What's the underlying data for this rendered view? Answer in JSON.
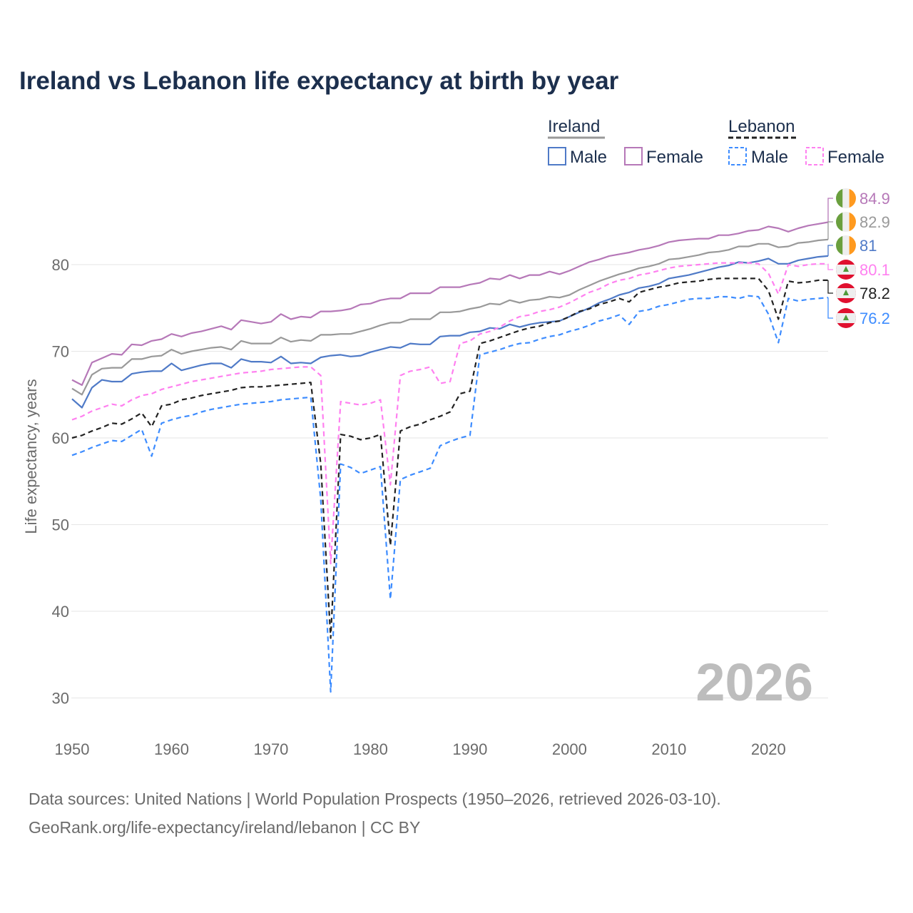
{
  "title": "Ireland vs Lebanon life expectancy at birth by year",
  "footer": {
    "line1": "Data sources: United Nations | World Population Prospects (1950–2026, retrieved 2026-03-10).",
    "line2": "GeoRank.org/life-expectancy/ireland/lebanon | CC BY"
  },
  "year_watermark": "2026",
  "legend": {
    "ireland": "Ireland",
    "lebanon": "Lebanon",
    "male": "Male",
    "female": "Female"
  },
  "chart_data": {
    "type": "line",
    "title": "Ireland vs Lebanon life expectancy at birth by year",
    "xlabel": "",
    "ylabel": "Life expectancy, years",
    "xlim": [
      1950,
      2026
    ],
    "ylim": [
      28,
      88
    ],
    "x_ticks": [
      "1950",
      "1960",
      "1970",
      "1980",
      "1990",
      "2000",
      "2010",
      "2020"
    ],
    "y_ticks": [
      "30",
      "40",
      "50",
      "60",
      "70",
      "80"
    ],
    "grid": true,
    "legend_position": "top-right",
    "x_start": 1950,
    "series": [
      {
        "name": "Ireland Female",
        "country": "Ireland",
        "flag": "ireland",
        "color": "#b678b8",
        "dash": false,
        "end_label": "84.9",
        "values": [
          66.7,
          66.1,
          68.7,
          69.2,
          69.7,
          69.6,
          70.8,
          70.7,
          71.2,
          71.4,
          72.0,
          71.7,
          72.1,
          72.3,
          72.6,
          72.9,
          72.5,
          73.6,
          73.4,
          73.2,
          73.4,
          74.3,
          73.7,
          74.0,
          73.9,
          74.6,
          74.6,
          74.7,
          74.9,
          75.4,
          75.5,
          75.9,
          76.1,
          76.1,
          76.7,
          76.7,
          76.7,
          77.4,
          77.4,
          77.4,
          77.7,
          77.9,
          78.4,
          78.3,
          78.8,
          78.4,
          78.8,
          78.8,
          79.2,
          78.9,
          79.3,
          79.8,
          80.3,
          80.6,
          81.0,
          81.2,
          81.4,
          81.7,
          81.9,
          82.2,
          82.6,
          82.8,
          82.9,
          83.0,
          83.0,
          83.4,
          83.4,
          83.6,
          83.9,
          84.0,
          84.4,
          84.2,
          83.8,
          84.2,
          84.5,
          84.7,
          84.9
        ]
      },
      {
        "name": "Ireland Both",
        "country": "Ireland",
        "flag": "ireland",
        "color": "#999999",
        "dash": false,
        "end_label": "82.9",
        "values": [
          65.7,
          65.0,
          67.3,
          68.0,
          68.1,
          68.1,
          69.1,
          69.1,
          69.4,
          69.5,
          70.2,
          69.7,
          70.0,
          70.2,
          70.4,
          70.5,
          70.2,
          71.2,
          70.9,
          70.9,
          70.9,
          71.6,
          71.1,
          71.3,
          71.2,
          71.9,
          71.9,
          72.0,
          72.0,
          72.3,
          72.6,
          73.0,
          73.3,
          73.3,
          73.7,
          73.7,
          73.7,
          74.5,
          74.5,
          74.6,
          74.9,
          75.1,
          75.5,
          75.4,
          75.9,
          75.6,
          75.9,
          76.0,
          76.3,
          76.2,
          76.5,
          77.1,
          77.6,
          78.1,
          78.5,
          78.9,
          79.2,
          79.6,
          79.8,
          80.1,
          80.6,
          80.7,
          80.9,
          81.1,
          81.4,
          81.5,
          81.7,
          82.1,
          82.1,
          82.4,
          82.4,
          82.0,
          82.1,
          82.5,
          82.6,
          82.8,
          82.9
        ]
      },
      {
        "name": "Ireland Male",
        "country": "Ireland",
        "flag": "ireland",
        "color": "#4f7ac7",
        "dash": false,
        "end_label": "81",
        "values": [
          64.5,
          63.5,
          65.8,
          66.7,
          66.5,
          66.5,
          67.4,
          67.6,
          67.7,
          67.7,
          68.6,
          67.8,
          68.1,
          68.4,
          68.6,
          68.6,
          68.1,
          69.1,
          68.8,
          68.8,
          68.7,
          69.4,
          68.6,
          68.7,
          68.6,
          69.3,
          69.5,
          69.6,
          69.4,
          69.5,
          69.9,
          70.2,
          70.5,
          70.4,
          70.9,
          70.8,
          70.8,
          71.7,
          71.8,
          71.8,
          72.2,
          72.3,
          72.7,
          72.6,
          73.1,
          72.8,
          73.1,
          73.3,
          73.4,
          73.5,
          74.0,
          74.5,
          75.0,
          75.6,
          76.0,
          76.5,
          76.8,
          77.3,
          77.5,
          77.8,
          78.4,
          78.6,
          78.8,
          79.1,
          79.4,
          79.7,
          79.9,
          80.3,
          80.2,
          80.4,
          80.7,
          80.1,
          80.1,
          80.5,
          80.7,
          80.9,
          81.0
        ]
      },
      {
        "name": "Lebanon Female",
        "country": "Lebanon",
        "flag": "lebanon",
        "color": "#ff80f0",
        "dash": true,
        "end_label": "80.1",
        "values": [
          62.1,
          62.5,
          63.1,
          63.5,
          63.9,
          63.7,
          64.4,
          64.9,
          65.1,
          65.6,
          65.9,
          66.2,
          66.5,
          66.7,
          66.9,
          67.1,
          67.3,
          67.5,
          67.6,
          67.7,
          67.9,
          68.0,
          68.1,
          68.2,
          68.2,
          67.2,
          45.5,
          64.2,
          64.0,
          63.8,
          64.0,
          64.4,
          54.6,
          67.2,
          67.7,
          67.9,
          68.2,
          66.3,
          66.5,
          70.9,
          71.2,
          72.0,
          72.3,
          72.8,
          73.5,
          74.0,
          74.2,
          74.6,
          74.8,
          75.1,
          75.6,
          76.2,
          76.8,
          77.2,
          77.8,
          78.2,
          78.4,
          78.8,
          79.0,
          79.3,
          79.6,
          79.8,
          79.9,
          80.0,
          80.1,
          80.2,
          80.2,
          80.2,
          80.2,
          80.1,
          79.0,
          76.6,
          80.0,
          79.8,
          80.0,
          80.1,
          80.1
        ]
      },
      {
        "name": "Lebanon Both",
        "country": "Lebanon",
        "flag": "lebanon",
        "color": "#222222",
        "dash": true,
        "end_label": "78.2",
        "values": [
          60.0,
          60.3,
          60.8,
          61.2,
          61.7,
          61.6,
          62.2,
          62.9,
          61.3,
          63.7,
          63.9,
          64.4,
          64.6,
          64.9,
          65.1,
          65.3,
          65.5,
          65.8,
          65.9,
          65.9,
          66.0,
          66.1,
          66.2,
          66.3,
          66.4,
          57.0,
          36.9,
          60.4,
          60.2,
          59.8,
          60.0,
          60.4,
          47.6,
          60.8,
          61.3,
          61.6,
          62.1,
          62.5,
          63.0,
          65.1,
          65.4,
          70.9,
          71.2,
          71.6,
          72.0,
          72.4,
          72.7,
          72.9,
          73.3,
          73.5,
          74.0,
          74.6,
          74.9,
          75.4,
          75.7,
          76.1,
          75.7,
          76.8,
          77.1,
          77.4,
          77.6,
          77.9,
          78.0,
          78.1,
          78.3,
          78.4,
          78.4,
          78.4,
          78.4,
          78.4,
          77.0,
          73.7,
          78.1,
          77.9,
          78.0,
          78.2,
          78.2
        ]
      },
      {
        "name": "Lebanon Male",
        "country": "Lebanon",
        "flag": "lebanon",
        "color": "#3d8cff",
        "dash": true,
        "end_label": "76.2",
        "values": [
          58.0,
          58.4,
          58.9,
          59.3,
          59.7,
          59.6,
          60.3,
          61.0,
          57.9,
          61.7,
          62.1,
          62.4,
          62.6,
          63.0,
          63.3,
          63.5,
          63.7,
          63.9,
          64.0,
          64.1,
          64.2,
          64.4,
          64.5,
          64.6,
          64.7,
          52.9,
          30.7,
          57.0,
          56.6,
          55.9,
          56.3,
          56.7,
          41.4,
          55.2,
          55.7,
          56.1,
          56.5,
          59.1,
          59.6,
          60.0,
          60.3,
          69.6,
          69.9,
          70.2,
          70.6,
          70.9,
          71.0,
          71.4,
          71.7,
          71.9,
          72.3,
          72.6,
          73.0,
          73.5,
          73.8,
          74.2,
          73.1,
          74.6,
          74.8,
          75.2,
          75.4,
          75.7,
          76.0,
          76.1,
          76.1,
          76.3,
          76.3,
          76.1,
          76.4,
          76.3,
          74.3,
          71.0,
          76.1,
          75.8,
          76.0,
          76.1,
          76.2
        ]
      }
    ]
  }
}
